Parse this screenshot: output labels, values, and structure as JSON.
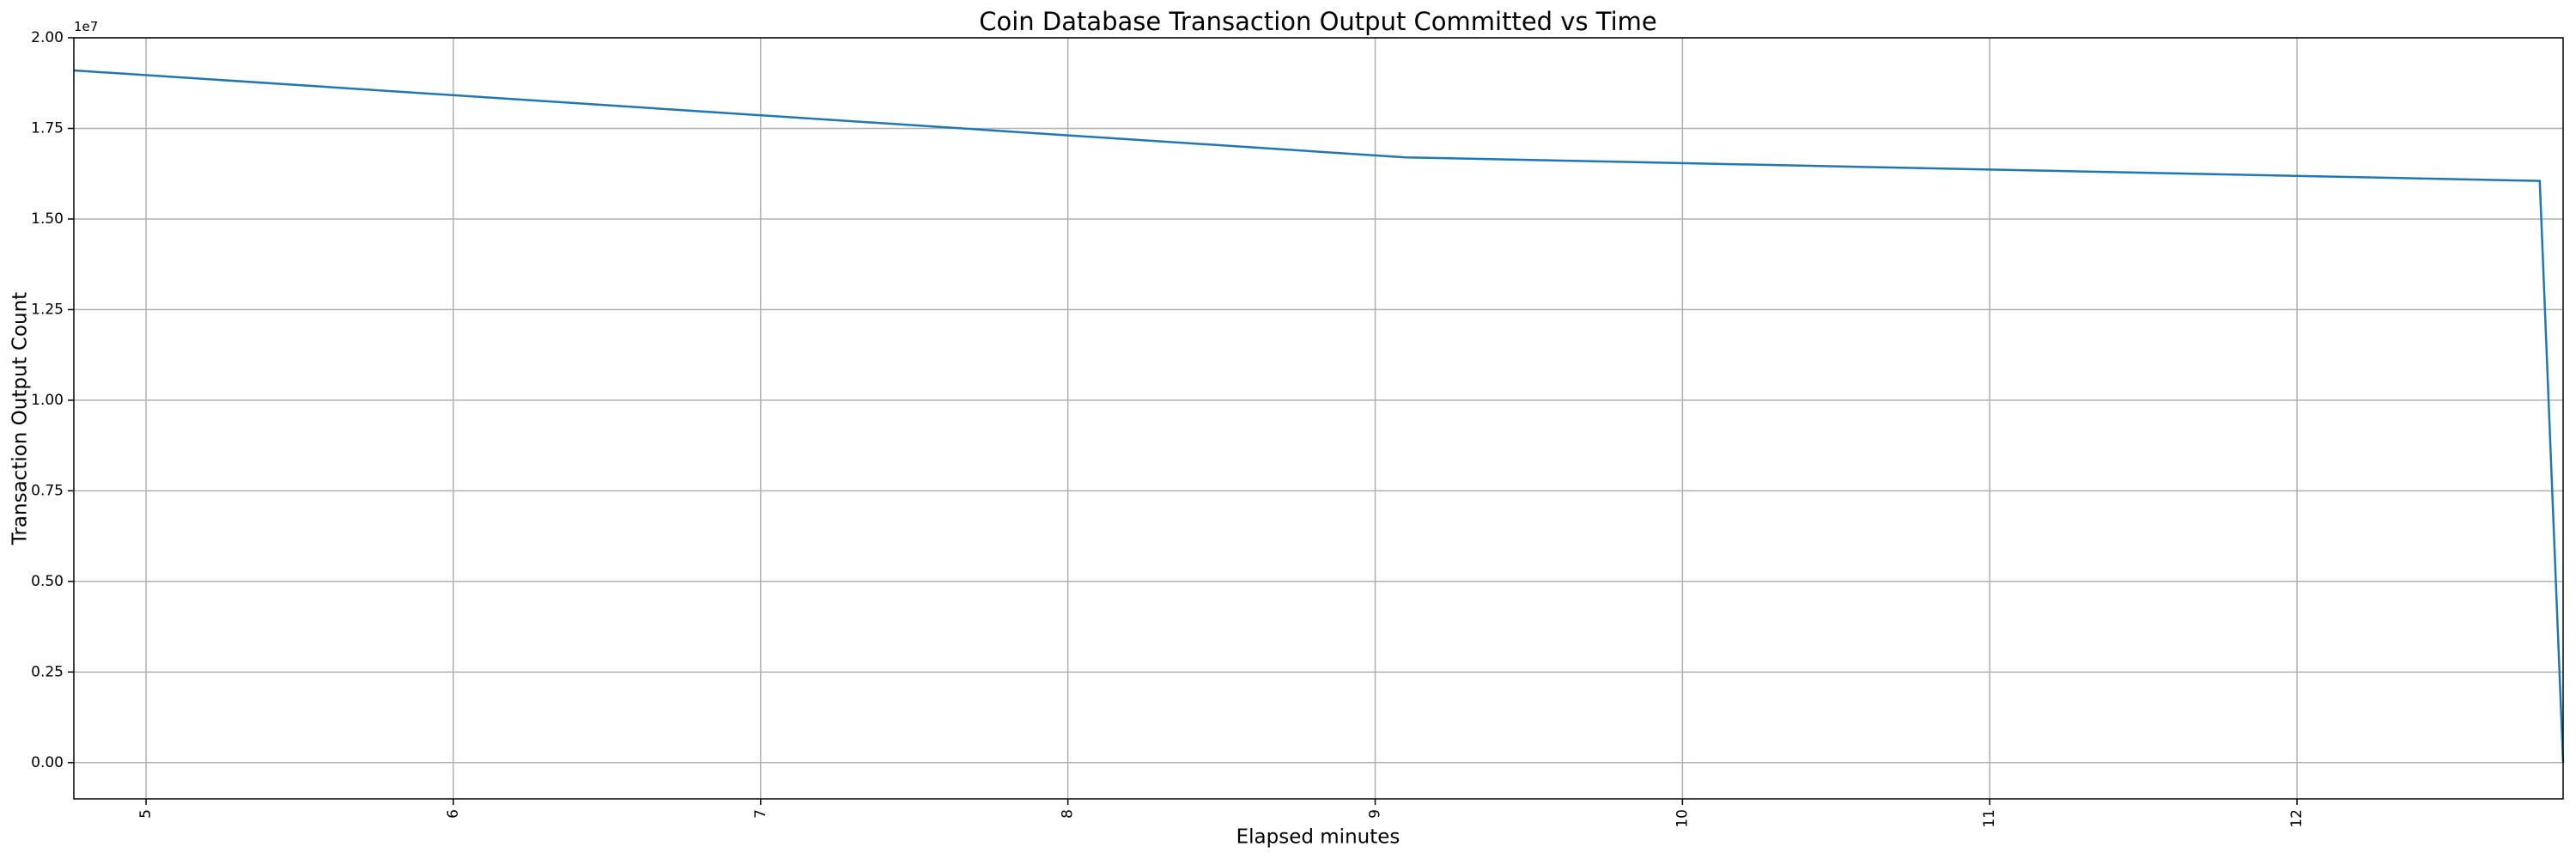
{
  "chart_data": {
    "type": "line",
    "title": "Coin Database Transaction Output Committed vs Time",
    "x_label": "Elapsed minutes",
    "y_label": "Transaction Output Count",
    "y_offset_label": "1e7",
    "x": [
      4.765,
      9.1,
      12.79,
      12.866
    ],
    "series": [
      {
        "name": "Transaction Output Count",
        "color": "#1f77b4",
        "values": [
          19100000,
          16700000,
          16050000,
          0
        ]
      }
    ],
    "xlim": [
      4.765,
      12.866
    ],
    "ylim": [
      -1000000,
      20000000
    ],
    "xticks": [
      5,
      6,
      7,
      8,
      9,
      10,
      11,
      12
    ],
    "yticks": [
      {
        "value": 0,
        "label": "0.00"
      },
      {
        "value": 2500000,
        "label": "0.25"
      },
      {
        "value": 5000000,
        "label": "0.50"
      },
      {
        "value": 7500000,
        "label": "0.75"
      },
      {
        "value": 10000000,
        "label": "1.00"
      },
      {
        "value": 12500000,
        "label": "1.25"
      },
      {
        "value": 15000000,
        "label": "1.50"
      },
      {
        "value": 17500000,
        "label": "1.75"
      },
      {
        "value": 20000000,
        "label": "2.00"
      }
    ],
    "grid": true
  }
}
